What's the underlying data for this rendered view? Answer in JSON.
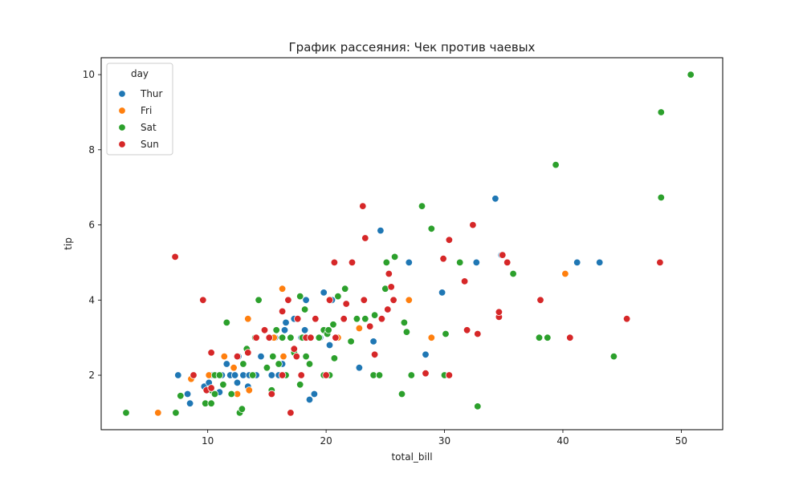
{
  "chart_data": {
    "type": "scatter",
    "title": "График рассеяния: Чек против чаевых",
    "xlabel": "total_bill",
    "ylabel": "tip",
    "xlim": [
      1.0,
      53.5
    ],
    "ylim": [
      0.55,
      10.45
    ],
    "xticks": [
      10,
      20,
      30,
      40,
      50
    ],
    "yticks": [
      2,
      4,
      6,
      8,
      10
    ],
    "grid": false,
    "legend": {
      "title": "day",
      "placement": "top-left"
    },
    "series": [
      {
        "name": "Thur",
        "color": "#1f77b4",
        "points": [
          [
            7.5,
            2.0
          ],
          [
            8.5,
            1.25
          ],
          [
            8.3,
            1.5
          ],
          [
            9.7,
            1.7
          ],
          [
            10.1,
            1.8
          ],
          [
            10.4,
            2.0
          ],
          [
            11.0,
            1.55
          ],
          [
            11.2,
            2.0
          ],
          [
            11.6,
            2.3
          ],
          [
            11.9,
            2.0
          ],
          [
            12.3,
            2.0
          ],
          [
            12.5,
            1.8
          ],
          [
            12.6,
            2.5
          ],
          [
            13.0,
            2.0
          ],
          [
            13.4,
            1.7
          ],
          [
            13.5,
            2.0
          ],
          [
            14.1,
            2.0
          ],
          [
            14.5,
            2.5
          ],
          [
            15.4,
            2.0
          ],
          [
            15.7,
            3.0
          ],
          [
            16.0,
            2.0
          ],
          [
            16.3,
            2.3
          ],
          [
            16.5,
            3.2
          ],
          [
            16.6,
            3.4
          ],
          [
            17.3,
            3.5
          ],
          [
            17.9,
            3.0
          ],
          [
            18.2,
            3.2
          ],
          [
            18.3,
            4.0
          ],
          [
            18.6,
            1.35
          ],
          [
            19.0,
            1.5
          ],
          [
            19.5,
            3.0
          ],
          [
            19.8,
            4.2
          ],
          [
            20.3,
            2.8
          ],
          [
            20.5,
            4.0
          ],
          [
            21.0,
            3.0
          ],
          [
            22.8,
            2.2
          ],
          [
            24.0,
            2.9
          ],
          [
            24.6,
            5.85
          ],
          [
            27.0,
            5.0
          ],
          [
            28.4,
            2.55
          ],
          [
            29.8,
            4.2
          ],
          [
            32.7,
            5.0
          ],
          [
            34.3,
            6.7
          ],
          [
            34.8,
            5.2
          ],
          [
            41.2,
            5.0
          ],
          [
            43.1,
            5.0
          ]
        ]
      },
      {
        "name": "Fri",
        "color": "#ff7f0e",
        "points": [
          [
            5.8,
            1.0
          ],
          [
            8.6,
            1.9
          ],
          [
            10.1,
            2.0
          ],
          [
            11.4,
            2.5
          ],
          [
            12.2,
            2.2
          ],
          [
            12.5,
            1.5
          ],
          [
            13.4,
            3.5
          ],
          [
            13.5,
            1.6
          ],
          [
            15.6,
            3.0
          ],
          [
            16.3,
            4.3
          ],
          [
            16.4,
            2.5
          ],
          [
            21.0,
            3.0
          ],
          [
            22.8,
            3.25
          ],
          [
            27.0,
            4.0
          ],
          [
            28.9,
            3.0
          ],
          [
            40.2,
            4.7
          ]
        ]
      },
      {
        "name": "Sat",
        "color": "#2ca02c",
        "points": [
          [
            3.1,
            1.0
          ],
          [
            7.3,
            1.0
          ],
          [
            7.7,
            1.45
          ],
          [
            9.8,
            1.25
          ],
          [
            10.3,
            1.25
          ],
          [
            10.3,
            1.6
          ],
          [
            10.6,
            1.5
          ],
          [
            10.6,
            2.0
          ],
          [
            11.0,
            2.0
          ],
          [
            11.3,
            1.75
          ],
          [
            11.6,
            3.4
          ],
          [
            12.0,
            1.5
          ],
          [
            12.7,
            1.0
          ],
          [
            12.9,
            1.1
          ],
          [
            13.0,
            2.3
          ],
          [
            13.3,
            2.7
          ],
          [
            13.8,
            2.0
          ],
          [
            14.0,
            3.0
          ],
          [
            14.3,
            4.0
          ],
          [
            14.8,
            3.2
          ],
          [
            15.0,
            2.2
          ],
          [
            15.4,
            1.6
          ],
          [
            15.5,
            2.5
          ],
          [
            15.8,
            3.2
          ],
          [
            16.0,
            2.3
          ],
          [
            16.3,
            3.0
          ],
          [
            16.6,
            2.0
          ],
          [
            17.0,
            3.0
          ],
          [
            17.3,
            2.6
          ],
          [
            17.8,
            4.1
          ],
          [
            17.8,
            1.75
          ],
          [
            18.0,
            3.0
          ],
          [
            18.2,
            3.75
          ],
          [
            18.3,
            2.5
          ],
          [
            18.6,
            2.3
          ],
          [
            19.4,
            3.0
          ],
          [
            19.8,
            3.2
          ],
          [
            20.1,
            3.1
          ],
          [
            20.3,
            2.0
          ],
          [
            20.6,
            3.35
          ],
          [
            20.7,
            2.45
          ],
          [
            21.0,
            4.1
          ],
          [
            21.6,
            4.3
          ],
          [
            22.1,
            2.9
          ],
          [
            22.6,
            3.5
          ],
          [
            23.3,
            3.5
          ],
          [
            24.0,
            2.0
          ],
          [
            24.5,
            2.0
          ],
          [
            25.0,
            4.3
          ],
          [
            25.1,
            5.0
          ],
          [
            25.8,
            5.15
          ],
          [
            26.4,
            1.5
          ],
          [
            26.6,
            3.4
          ],
          [
            26.8,
            3.15
          ],
          [
            27.2,
            2.0
          ],
          [
            28.1,
            6.5
          ],
          [
            28.9,
            5.9
          ],
          [
            30.1,
            3.1
          ],
          [
            30.0,
            2.0
          ],
          [
            31.3,
            5.0
          ],
          [
            32.8,
            1.17
          ],
          [
            35.8,
            4.7
          ],
          [
            38.0,
            3.0
          ],
          [
            38.7,
            3.0
          ],
          [
            39.4,
            7.6
          ],
          [
            44.3,
            2.5
          ],
          [
            48.3,
            9.0
          ],
          [
            48.3,
            6.73
          ],
          [
            50.8,
            10.0
          ],
          [
            24.1,
            3.6
          ],
          [
            20.2,
            3.2
          ],
          [
            19.8,
            2.0
          ]
        ]
      },
      {
        "name": "Sun",
        "color": "#d62728",
        "points": [
          [
            7.25,
            5.15
          ],
          [
            8.8,
            2.0
          ],
          [
            9.6,
            4.0
          ],
          [
            9.9,
            1.6
          ],
          [
            10.3,
            2.6
          ],
          [
            10.3,
            1.66
          ],
          [
            12.5,
            2.5
          ],
          [
            13.4,
            2.6
          ],
          [
            14.1,
            3.0
          ],
          [
            14.8,
            3.2
          ],
          [
            15.2,
            3.0
          ],
          [
            15.4,
            1.5
          ],
          [
            16.3,
            2.0
          ],
          [
            16.3,
            3.7
          ],
          [
            16.8,
            4.0
          ],
          [
            17.0,
            1.0
          ],
          [
            17.3,
            2.7
          ],
          [
            17.5,
            2.5
          ],
          [
            17.6,
            3.5
          ],
          [
            17.9,
            2.0
          ],
          [
            18.3,
            3.0
          ],
          [
            18.7,
            3.0
          ],
          [
            19.1,
            3.5
          ],
          [
            20.0,
            2.0
          ],
          [
            20.7,
            5.0
          ],
          [
            20.8,
            3.0
          ],
          [
            21.5,
            3.5
          ],
          [
            21.7,
            3.9
          ],
          [
            22.2,
            5.0
          ],
          [
            23.1,
            6.5
          ],
          [
            23.3,
            5.65
          ],
          [
            23.7,
            3.3
          ],
          [
            24.1,
            2.55
          ],
          [
            24.7,
            3.5
          ],
          [
            25.2,
            3.75
          ],
          [
            25.3,
            4.7
          ],
          [
            25.7,
            4.0
          ],
          [
            25.5,
            4.35
          ],
          [
            28.4,
            2.05
          ],
          [
            29.9,
            5.1
          ],
          [
            30.4,
            5.6
          ],
          [
            30.4,
            2.0
          ],
          [
            31.7,
            4.5
          ],
          [
            31.9,
            3.2
          ],
          [
            32.4,
            6.0
          ],
          [
            32.8,
            3.1
          ],
          [
            34.6,
            3.55
          ],
          [
            34.6,
            3.68
          ],
          [
            34.9,
            5.2
          ],
          [
            35.3,
            5.0
          ],
          [
            38.1,
            4.0
          ],
          [
            40.6,
            3.0
          ],
          [
            45.4,
            3.5
          ],
          [
            48.2,
            5.0
          ],
          [
            20.3,
            4.0
          ],
          [
            23.2,
            4.0
          ]
        ]
      }
    ]
  }
}
